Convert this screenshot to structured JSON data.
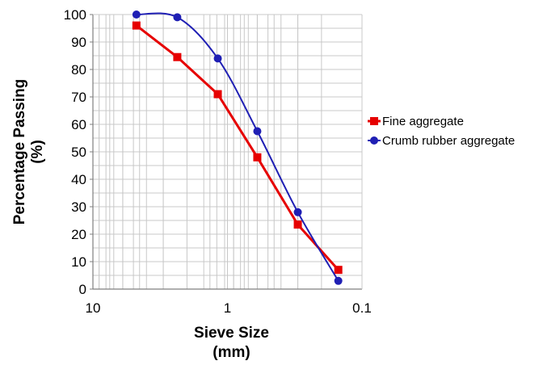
{
  "chart_data": {
    "type": "line",
    "title": "",
    "xlabel": [
      "Sieve Size",
      "(mm)"
    ],
    "ylabel": [
      "Percentage Passing",
      "(%)"
    ],
    "xscale": "log",
    "x_reversed": true,
    "xlim": [
      10,
      0.1
    ],
    "ylim": [
      0,
      100
    ],
    "x_tick_labels": [
      "10",
      "1",
      "0.1"
    ],
    "y_tick_labels": [
      "0",
      "10",
      "20",
      "30",
      "40",
      "50",
      "60",
      "70",
      "80",
      "90",
      "100"
    ],
    "grid": true,
    "legend_position": "right",
    "series": [
      {
        "name": "Fine aggregate",
        "color": "#e60000",
        "marker": "square",
        "smooth": false,
        "x": [
          4.75,
          2.36,
          1.18,
          0.6,
          0.3,
          0.15
        ],
        "y": [
          96,
          84.5,
          71,
          48,
          23.5,
          7
        ]
      },
      {
        "name": "Crumb rubber aggregate",
        "color": "#1f1fb4",
        "marker": "circle",
        "smooth": true,
        "x": [
          4.75,
          2.36,
          1.18,
          0.6,
          0.3,
          0.15
        ],
        "y": [
          100,
          99,
          84,
          57.5,
          28,
          3
        ]
      }
    ]
  }
}
